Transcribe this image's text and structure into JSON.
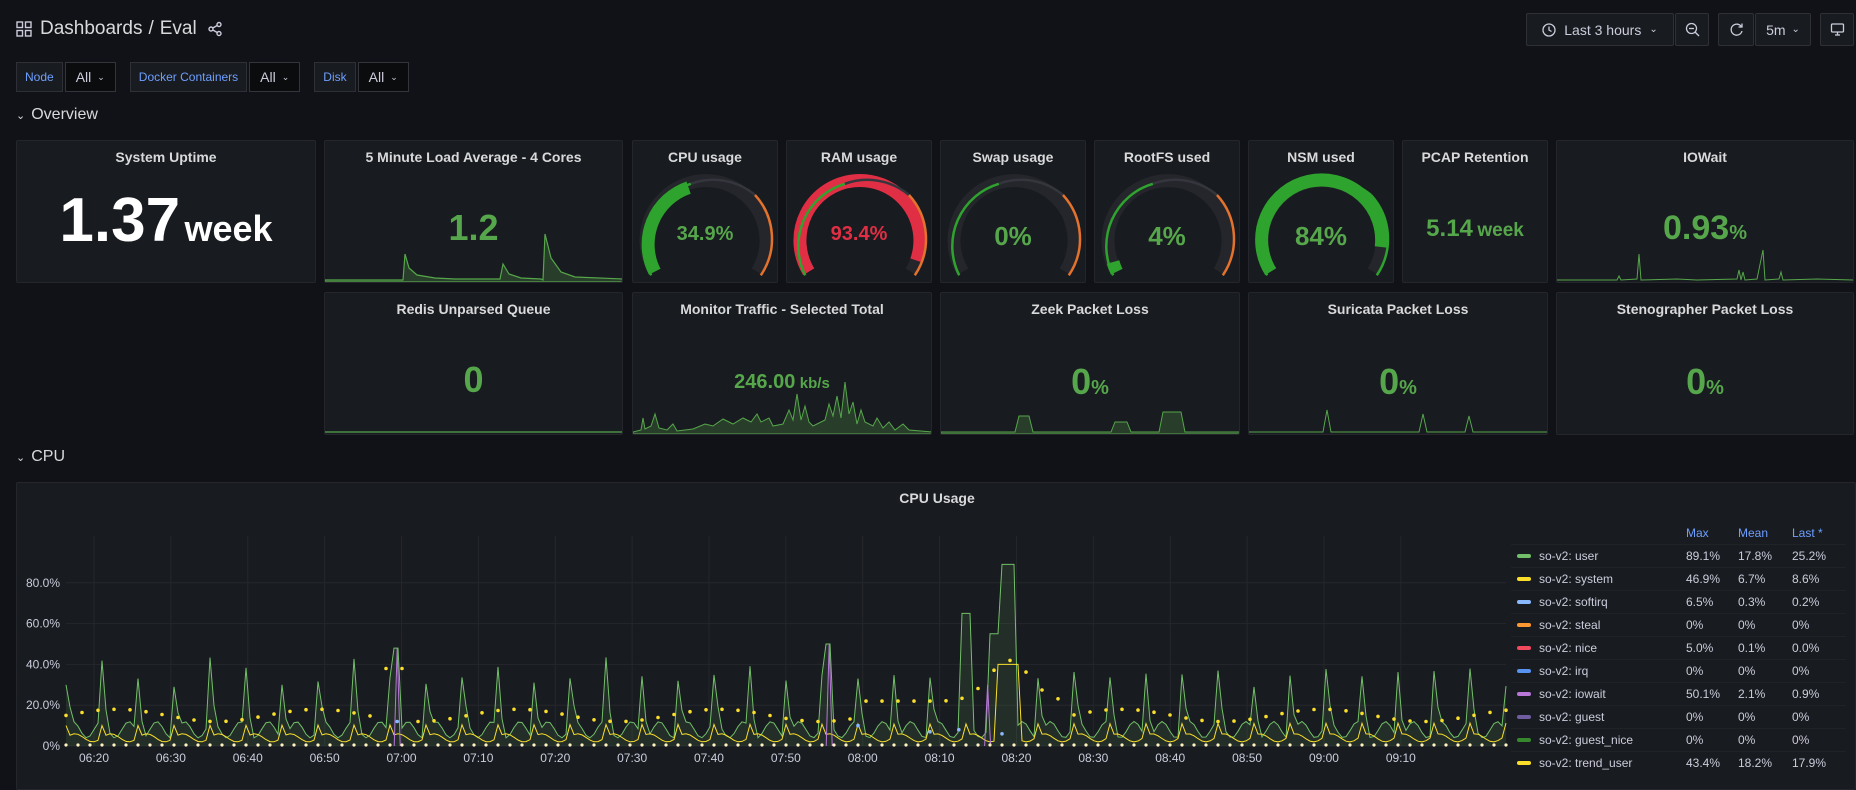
{
  "header": {
    "breadcrumb_root": "Dashboards",
    "breadcrumb_sep": "/",
    "dashboard": "Eval",
    "time_range": "Last 3 hours",
    "refresh": "5m"
  },
  "variables": [
    {
      "label": "Node",
      "value": "All"
    },
    {
      "label": "Docker Containers",
      "value": "All"
    },
    {
      "label": "Disk",
      "value": "All"
    }
  ],
  "rows": {
    "overview": "Overview",
    "cpu": "CPU"
  },
  "stats": {
    "uptime": {
      "title": "System Uptime",
      "value": "1.37",
      "unit": "week"
    },
    "load": {
      "title": "5 Minute Load Average - 4 Cores",
      "value": "1.2"
    },
    "cpu": {
      "title": "CPU usage",
      "value": "34.9%",
      "fraction": 0.349
    },
    "ram": {
      "title": "RAM usage",
      "value": "93.4%",
      "fraction": 0.934
    },
    "swap": {
      "title": "Swap usage",
      "value": "0%",
      "fraction": 0
    },
    "rootfs": {
      "title": "RootFS used",
      "value": "4%",
      "fraction": 0.04
    },
    "nsm": {
      "title": "NSM used",
      "value": "84%",
      "fraction": 0.84
    },
    "pcap": {
      "title": "PCAP Retention",
      "value": "5.14",
      "unit": "week"
    },
    "iowait": {
      "title": "IOWait",
      "value": "0.93",
      "unit": "%"
    },
    "redis": {
      "title": "Redis Unparsed Queue",
      "value": "0"
    },
    "traffic": {
      "title": "Monitor Traffic - Selected Total",
      "value": "246.00",
      "unit": "kb/s"
    },
    "zeek": {
      "title": "Zeek Packet Loss",
      "value": "0",
      "unit": "%"
    },
    "suricata": {
      "title": "Suricata Packet Loss",
      "value": "0",
      "unit": "%"
    },
    "steno": {
      "title": "Stenographer Packet Loss",
      "value": "0",
      "unit": "%"
    }
  },
  "chart_data": {
    "type": "line",
    "title": "CPU Usage",
    "x": [
      "06:20",
      "06:30",
      "06:40",
      "06:50",
      "07:00",
      "07:10",
      "07:20",
      "07:30",
      "07:40",
      "07:50",
      "08:00",
      "08:10",
      "08:20",
      "08:30",
      "08:40",
      "08:50",
      "09:00",
      "09:10"
    ],
    "yticks": [
      "0%",
      "20.0%",
      "40.0%",
      "60.0%",
      "80.0%"
    ],
    "ylim": [
      0,
      100
    ],
    "legend_headers": [
      "Max",
      "Mean",
      "Last *"
    ],
    "series": [
      {
        "name": "so-v2: user",
        "color": "#73bf69",
        "max": "89.1%",
        "mean": "17.8%",
        "last": "25.2%"
      },
      {
        "name": "so-v2: system",
        "color": "#fade2a",
        "max": "46.9%",
        "mean": "6.7%",
        "last": "8.6%"
      },
      {
        "name": "so-v2: softirq",
        "color": "#8ab8ff",
        "max": "6.5%",
        "mean": "0.3%",
        "last": "0.2%"
      },
      {
        "name": "so-v2: steal",
        "color": "#ff9830",
        "max": "0%",
        "mean": "0%",
        "last": "0%"
      },
      {
        "name": "so-v2: nice",
        "color": "#f2495c",
        "max": "5.0%",
        "mean": "0.1%",
        "last": "0.0%"
      },
      {
        "name": "so-v2: irq",
        "color": "#5794f2",
        "max": "0%",
        "mean": "0%",
        "last": "0%"
      },
      {
        "name": "so-v2: iowait",
        "color": "#b877d9",
        "max": "50.1%",
        "mean": "2.1%",
        "last": "0.9%"
      },
      {
        "name": "so-v2: guest",
        "color": "#705da0",
        "max": "0%",
        "mean": "0%",
        "last": "0%"
      },
      {
        "name": "so-v2: guest_nice",
        "color": "#37872d",
        "max": "0%",
        "mean": "0%",
        "last": "0%"
      },
      {
        "name": "so-v2: trend_user",
        "color": "#fade2a",
        "max": "43.4%",
        "mean": "18.2%",
        "last": "17.9%"
      }
    ]
  }
}
